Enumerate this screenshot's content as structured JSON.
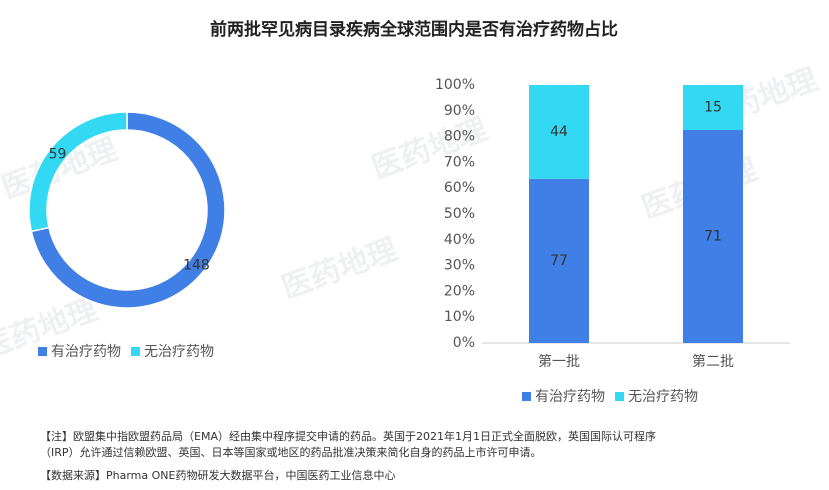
{
  "title": "前两批罕见病目录疾病全球范围内是否有治疗药物占比",
  "watermark": "医药地理",
  "chart_data": [
    {
      "type": "pie",
      "donut": true,
      "categories": [
        "有治疗药物",
        "无治疗药物"
      ],
      "values": [
        148,
        59
      ],
      "colors": [
        "#3f7fe6",
        "#33d9f2"
      ],
      "legend": "bottom"
    },
    {
      "type": "bar",
      "stacked": "percent",
      "categories": [
        "第一批",
        "第二批"
      ],
      "series": [
        {
          "name": "有治疗药物",
          "color": "#3f7fe6",
          "values": [
            77,
            71
          ]
        },
        {
          "name": "无治疗药物",
          "color": "#33d9f2",
          "values": [
            44,
            15
          ]
        }
      ],
      "ylim": [
        0,
        100
      ],
      "yticks": [
        {
          "value": 0,
          "label": "0%"
        },
        {
          "value": 10,
          "label": "10%"
        },
        {
          "value": 20,
          "label": "20%"
        },
        {
          "value": 30,
          "label": "30%"
        },
        {
          "value": 40,
          "label": "40%"
        },
        {
          "value": 50,
          "label": "50%"
        },
        {
          "value": 60,
          "label": "60%"
        },
        {
          "value": 70,
          "label": "70%"
        },
        {
          "value": 80,
          "label": "80%"
        },
        {
          "value": 90,
          "label": "90%"
        },
        {
          "value": 100,
          "label": "100%"
        }
      ],
      "legend": "bottom"
    }
  ],
  "note": [
    "【注】欧盟集中指欧盟药品局（EMA）经由集中程序提交申请的药品。英国于2021年1月1日正式全面脱欧，英国国际认可程序",
    "（IRP）允许通过信赖欧盟、英国、日本等国家或地区的药品批准决策来简化自身的药品上市许可申请。"
  ],
  "source": "【数据来源】Pharma ONE药物研发大数据平台，中国医药工业信息中心"
}
